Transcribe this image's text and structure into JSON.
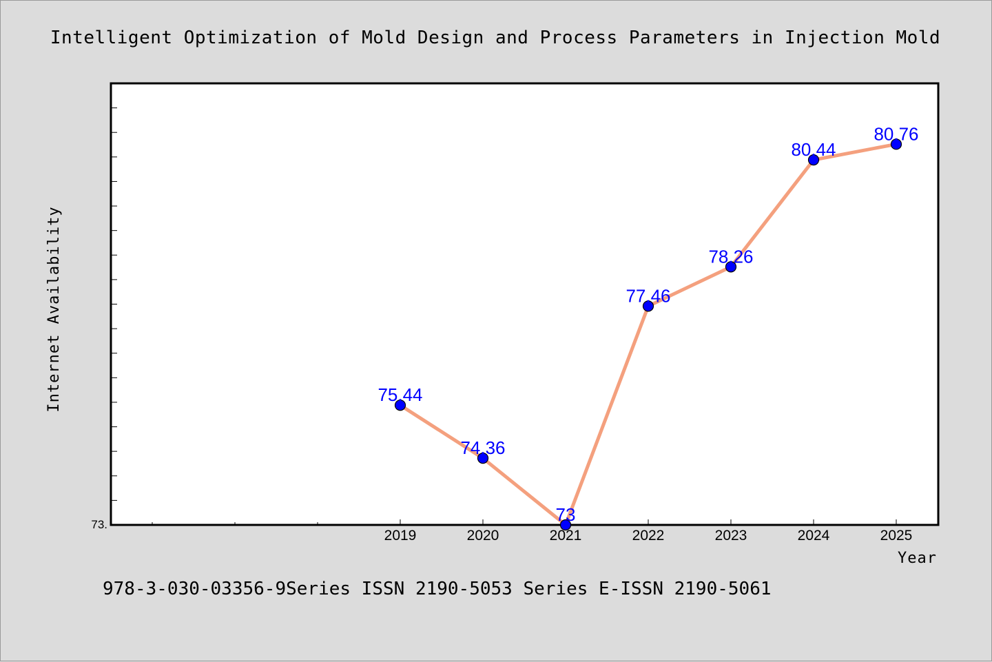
{
  "chart_data": {
    "type": "line",
    "title": "Intelligent Optimization of Mold Design and Process Parameters in Injection Mold",
    "xlabel": "Year",
    "ylabel": "Internet Availability",
    "x": [
      "2019",
      "2020",
      "2021",
      "2022",
      "2023",
      "2024",
      "2025"
    ],
    "series": [
      {
        "values": [
          75.44,
          74.36,
          73,
          77.46,
          78.26,
          80.44,
          80.76
        ]
      }
    ],
    "data_labels": [
      "75.44",
      "74.36",
      "73",
      "77.46",
      "78.26",
      "80.44",
      "80.76"
    ],
    "y_min_label": "73.",
    "ylim": [
      73,
      82
    ],
    "grid": false,
    "colors": {
      "line": "#f4a07e",
      "marker": "#0000ff",
      "label": "#0000ff"
    }
  },
  "footer": {
    "text": "978-3-030-03356-9Series ISSN 2190-5053 Series E-ISSN 2190-5061"
  }
}
